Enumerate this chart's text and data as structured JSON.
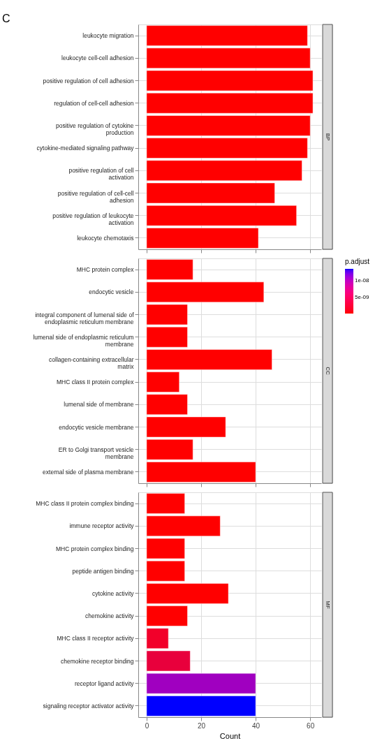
{
  "chart_data": [
    {
      "type": "bar",
      "orientation": "horizontal",
      "title": "C",
      "annotations": [
        "BP"
      ],
      "categories": [
        "leukocyte migration",
        "leukocyte cell-cell adhesion",
        "positive regulation of cell adhesion",
        "regulation of cell-cell adhesion",
        "positive regulation of cytokine production",
        "cytokine-mediated signaling pathway",
        "positive regulation of cell activation",
        "positive regulation of cell-cell adhesion",
        "positive regulation of leukocyte activation",
        "leukocyte chemotaxis"
      ],
      "values": [
        59,
        60,
        61,
        61,
        60,
        59,
        57,
        47,
        55,
        41
      ],
      "colors": [
        "#ff0000",
        "#ff0000",
        "#ff0000",
        "#ff0000",
        "#ff0000",
        "#ff0000",
        "#ff0000",
        "#ff0000",
        "#ff0000",
        "#ff0000"
      ],
      "xlim": [
        -3.05,
        64.05
      ],
      "xticks": [
        0,
        20,
        40,
        60
      ],
      "grid": true,
      "tick_labels": "y"
    },
    {
      "type": "bar",
      "orientation": "horizontal",
      "annotations": [
        "CC"
      ],
      "categories": [
        "MHC protein complex",
        "endocytic vesicle",
        "integral component of lumenal side of endoplasmic reticulum membrane",
        "lumenal side of endoplasmic reticulum membrane",
        "collagen-containing extracellular matrix",
        "MHC class II protein complex",
        "lumenal side of membrane",
        "endocytic vesicle membrane",
        "ER to Golgi transport vesicle membrane",
        "external side of plasma membrane"
      ],
      "values": [
        17,
        43,
        15,
        15,
        46,
        12,
        15,
        29,
        17,
        40
      ],
      "cvalues": [
        1e-10,
        1e-10,
        1e-10,
        1e-10,
        1e-10,
        1e-10,
        1e-10,
        1e-10,
        1e-10,
        1e-10
      ],
      "clim": [
        1e-10,
        1.35e-08
      ],
      "clabel": "p.adjust",
      "cticks": [
        {
          "value": 5e-09,
          "label": "5e-09"
        },
        {
          "value": 1e-08,
          "label": "1e-08"
        }
      ],
      "xlim": [
        -3.05,
        64.05
      ],
      "xticks": [
        0,
        20,
        40,
        60
      ],
      "grid": true,
      "tick_labels": "y"
    },
    {
      "type": "bar",
      "orientation": "horizontal",
      "annotations": [
        "MF"
      ],
      "xlabel": "Count",
      "categories": [
        "MHC class II protein complex binding",
        "immune receptor activity",
        "MHC protein complex binding",
        "peptide antigen binding",
        "cytokine activity",
        "chemokine activity",
        "MHC class II receptor activity",
        "chemokine receptor binding",
        "receptor ligand activity",
        "signaling receptor activator activity"
      ],
      "values": [
        14,
        27,
        14,
        14,
        30,
        15,
        8,
        16,
        40,
        40
      ],
      "colors": [
        "#ff0000",
        "#ff0000",
        "#ff0000",
        "#ff0000",
        "#ff0000",
        "#ff0000",
        "#f2002a",
        "#e8003c",
        "#a000c0",
        "#0000ff"
      ],
      "xlim": [
        -3.05,
        64.05
      ],
      "xticks": [
        0,
        20,
        40,
        60
      ],
      "grid": true
    }
  ]
}
